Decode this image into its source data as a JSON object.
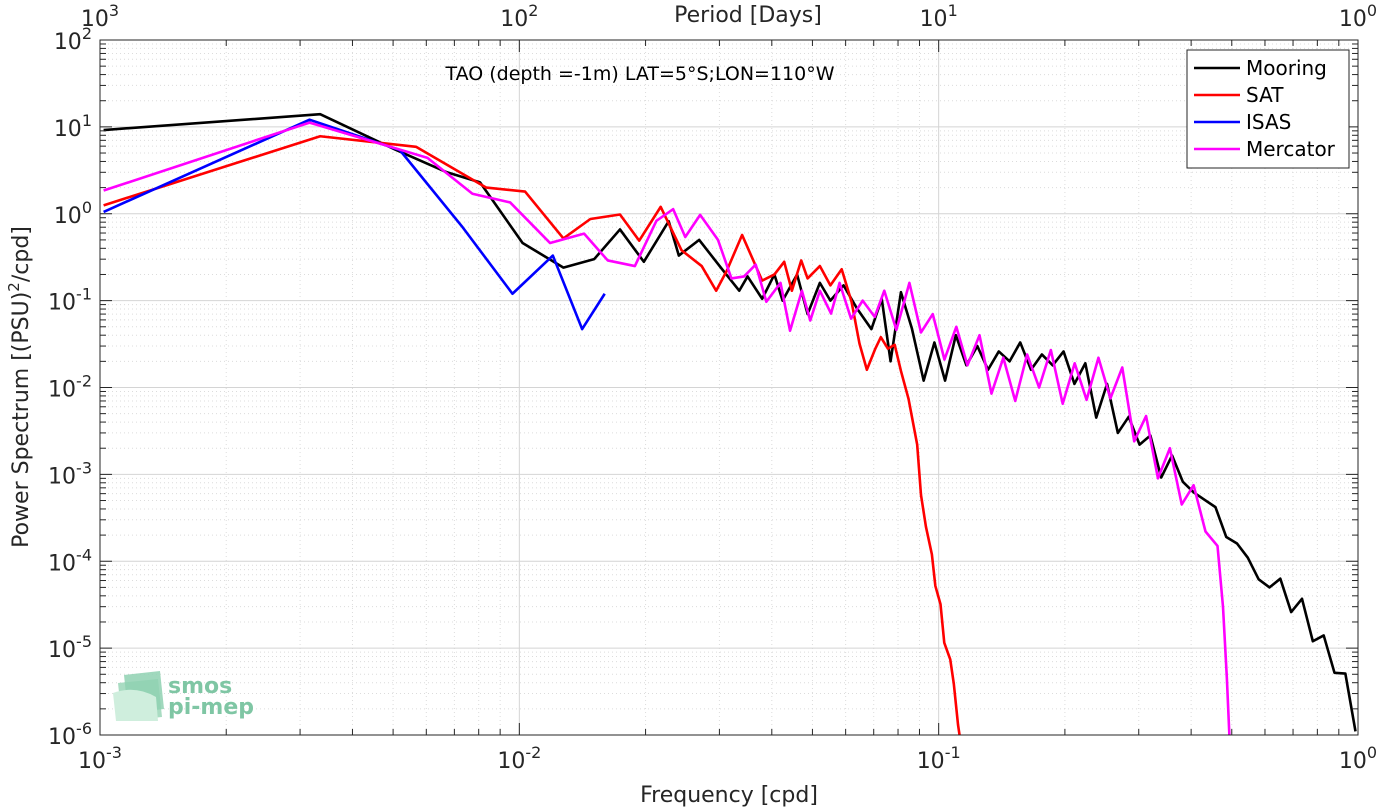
{
  "chart_data": {
    "type": "line",
    "title": "TAO (depth =-1m) LAT=5°S;LON=110°W",
    "xlabel": "Frequency [cpd]",
    "ylabel": "Power Spectrum [(PSU)",
    "ylabel_sup": "2",
    "ylabel_tail": "/cpd]",
    "x2label": "Period [Days]",
    "xscale": "log",
    "yscale": "log",
    "xlim": [
      0.001,
      1
    ],
    "ylim": [
      1e-06,
      100
    ],
    "grid": true,
    "legend_position": "top-right",
    "x_ticks": [
      {
        "value": 0.001,
        "base": "10",
        "exp": "-3"
      },
      {
        "value": 0.01,
        "base": "10",
        "exp": "-2"
      },
      {
        "value": 0.1,
        "base": "10",
        "exp": "-1"
      },
      {
        "value": 1,
        "base": "10",
        "exp": "0"
      }
    ],
    "y_ticks": [
      {
        "value": 1e-06,
        "base": "10",
        "exp": "-6"
      },
      {
        "value": 1e-05,
        "base": "10",
        "exp": "-5"
      },
      {
        "value": 0.0001,
        "base": "10",
        "exp": "-4"
      },
      {
        "value": 0.001,
        "base": "10",
        "exp": "-3"
      },
      {
        "value": 0.01,
        "base": "10",
        "exp": "-2"
      },
      {
        "value": 0.1,
        "base": "10",
        "exp": "-1"
      },
      {
        "value": 1,
        "base": "10",
        "exp": "0"
      },
      {
        "value": 10,
        "base": "10",
        "exp": "1"
      },
      {
        "value": 100,
        "base": "10",
        "exp": "2"
      }
    ],
    "x2_ticks": [
      {
        "period": 1000,
        "base": "10",
        "exp": "3"
      },
      {
        "period": 100,
        "base": "10",
        "exp": "2"
      },
      {
        "period": 10,
        "base": "10",
        "exp": "1"
      },
      {
        "period": 1,
        "base": "10",
        "exp": "0"
      }
    ],
    "series": [
      {
        "name": "Mooring",
        "color": "#000000",
        "points": [
          [
            0.00102,
            9.2
          ],
          [
            0.00335,
            14.0
          ],
          [
            0.00505,
            5.5
          ],
          [
            0.00672,
            3.0
          ],
          [
            0.00806,
            2.3
          ],
          [
            0.01018,
            0.46
          ],
          [
            0.01274,
            0.24
          ],
          [
            0.01508,
            0.3
          ],
          [
            0.01738,
            0.66
          ],
          [
            0.01981,
            0.28
          ],
          [
            0.02271,
            0.82
          ],
          [
            0.02401,
            0.33
          ],
          [
            0.02685,
            0.5
          ],
          [
            0.03023,
            0.24
          ],
          [
            0.03345,
            0.13
          ],
          [
            0.03502,
            0.19
          ],
          [
            0.03794,
            0.105
          ],
          [
            0.04058,
            0.2
          ],
          [
            0.04244,
            0.1
          ],
          [
            0.04596,
            0.2
          ],
          [
            0.04869,
            0.07
          ],
          [
            0.05208,
            0.16
          ],
          [
            0.05518,
            0.1
          ],
          [
            0.05932,
            0.15
          ],
          [
            0.06377,
            0.082
          ],
          [
            0.06912,
            0.047
          ],
          [
            0.07315,
            0.105
          ],
          [
            0.07679,
            0.02
          ],
          [
            0.08129,
            0.125
          ],
          [
            0.08631,
            0.048
          ],
          [
            0.09209,
            0.012
          ],
          [
            0.09769,
            0.033
          ],
          [
            0.10358,
            0.012
          ],
          [
            0.10988,
            0.04
          ],
          [
            0.11645,
            0.018
          ],
          [
            0.12366,
            0.03
          ],
          [
            0.13114,
            0.016
          ],
          [
            0.13912,
            0.026
          ],
          [
            0.14759,
            0.02
          ],
          [
            0.15651,
            0.033
          ],
          [
            0.16605,
            0.016
          ],
          [
            0.17622,
            0.024
          ],
          [
            0.18702,
            0.018
          ],
          [
            0.19853,
            0.026
          ],
          [
            0.21076,
            0.011
          ],
          [
            0.22374,
            0.019
          ],
          [
            0.23756,
            0.0045
          ],
          [
            0.25208,
            0.011
          ],
          [
            0.2675,
            0.003
          ],
          [
            0.28391,
            0.0046
          ],
          [
            0.30133,
            0.0022
          ],
          [
            0.31984,
            0.0028
          ],
          [
            0.33938,
            0.00092
          ],
          [
            0.3603,
            0.00165
          ],
          [
            0.38227,
            0.00082
          ],
          [
            0.40578,
            0.00062
          ],
          [
            0.43065,
            0.00051
          ],
          [
            0.45711,
            0.00042
          ],
          [
            0.48517,
            0.00019
          ],
          [
            0.51465,
            0.00016
          ],
          [
            0.546,
            0.00011
          ],
          [
            0.57955,
            6.2e-05
          ],
          [
            0.61524,
            5e-05
          ],
          [
            0.65276,
            6.3e-05
          ],
          [
            0.69288,
            2.6e-05
          ],
          [
            0.73527,
            3.7e-05
          ],
          [
            0.78032,
            1.2e-05
          ],
          [
            0.82839,
            1.4e-05
          ],
          [
            0.87893,
            5.2e-06
          ],
          [
            0.9329,
            5.1e-06
          ],
          [
            0.9863,
            1.1e-06
          ]
        ]
      },
      {
        "name": "SAT",
        "color": "#ff0000",
        "points": [
          [
            0.00102,
            1.25
          ],
          [
            0.00335,
            7.8
          ],
          [
            0.00567,
            5.9
          ],
          [
            0.00834,
            2.0
          ],
          [
            0.01032,
            1.8
          ],
          [
            0.01274,
            0.52
          ],
          [
            0.01477,
            0.87
          ],
          [
            0.01738,
            0.98
          ],
          [
            0.01931,
            0.49
          ],
          [
            0.02173,
            1.2
          ],
          [
            0.02437,
            0.38
          ],
          [
            0.02722,
            0.25
          ],
          [
            0.02947,
            0.13
          ],
          [
            0.03123,
            0.22
          ],
          [
            0.03398,
            0.57
          ],
          [
            0.03794,
            0.17
          ],
          [
            0.04058,
            0.2
          ],
          [
            0.04282,
            0.28
          ],
          [
            0.04466,
            0.13
          ],
          [
            0.04701,
            0.29
          ],
          [
            0.04869,
            0.18
          ],
          [
            0.05208,
            0.25
          ],
          [
            0.05518,
            0.15
          ],
          [
            0.05871,
            0.23
          ],
          [
            0.06198,
            0.097
          ],
          [
            0.06474,
            0.032
          ],
          [
            0.06742,
            0.016
          ],
          [
            0.07062,
            0.028
          ],
          [
            0.07279,
            0.038
          ],
          [
            0.07569,
            0.028
          ],
          [
            0.07855,
            0.031
          ],
          [
            0.08129,
            0.0155
          ],
          [
            0.08475,
            0.0074
          ],
          [
            0.08887,
            0.0022
          ],
          [
            0.09075,
            0.00058
          ],
          [
            0.09324,
            0.00025
          ],
          [
            0.09634,
            0.00012
          ],
          [
            0.0982,
            5.2e-05
          ],
          [
            0.10102,
            3.2e-05
          ],
          [
            0.10313,
            1.15e-05
          ],
          [
            0.10657,
            7.4e-06
          ],
          [
            0.10866,
            3.9e-06
          ],
          [
            0.11124,
            1.3e-06
          ],
          [
            0.11393,
            6e-07
          ]
        ]
      },
      {
        "name": "ISAS",
        "color": "#0000ff",
        "points": [
          [
            0.00102,
            1.05
          ],
          [
            0.00316,
            12.1
          ],
          [
            0.00519,
            5.4
          ],
          [
            0.00729,
            0.72
          ],
          [
            0.00963,
            0.12
          ],
          [
            0.01202,
            0.33
          ],
          [
            0.01412,
            0.047
          ],
          [
            0.01598,
            0.12
          ]
        ]
      },
      {
        "name": "Mercator",
        "color": "#ff00ff",
        "points": [
          [
            0.00102,
            1.85
          ],
          [
            0.00316,
            11.2
          ],
          [
            0.00604,
            4.4
          ],
          [
            0.00773,
            1.7
          ],
          [
            0.00951,
            1.35
          ],
          [
            0.01184,
            0.46
          ],
          [
            0.01427,
            0.59
          ],
          [
            0.01625,
            0.29
          ],
          [
            0.01886,
            0.25
          ],
          [
            0.02123,
            0.83
          ],
          [
            0.02327,
            1.13
          ],
          [
            0.02487,
            0.54
          ],
          [
            0.02699,
            0.97
          ],
          [
            0.02977,
            0.5
          ],
          [
            0.03205,
            0.18
          ],
          [
            0.03435,
            0.19
          ],
          [
            0.03662,
            0.26
          ],
          [
            0.03882,
            0.097
          ],
          [
            0.04196,
            0.16
          ],
          [
            0.04421,
            0.045
          ],
          [
            0.04719,
            0.13
          ],
          [
            0.04941,
            0.059
          ],
          [
            0.05208,
            0.13
          ],
          [
            0.05538,
            0.071
          ],
          [
            0.05804,
            0.16
          ],
          [
            0.06181,
            0.062
          ],
          [
            0.06589,
            0.1
          ],
          [
            0.07039,
            0.065
          ],
          [
            0.07419,
            0.13
          ],
          [
            0.07927,
            0.046
          ],
          [
            0.08516,
            0.16
          ],
          [
            0.09075,
            0.043
          ],
          [
            0.09681,
            0.07
          ],
          [
            0.10322,
            0.021
          ],
          [
            0.11017,
            0.05
          ],
          [
            0.11713,
            0.018
          ],
          [
            0.12514,
            0.04
          ],
          [
            0.13364,
            0.0085
          ],
          [
            0.14263,
            0.022
          ],
          [
            0.15227,
            0.007
          ],
          [
            0.16255,
            0.024
          ],
          [
            0.1736,
            0.01
          ],
          [
            0.18515,
            0.027
          ],
          [
            0.19761,
            0.0065
          ],
          [
            0.21103,
            0.019
          ],
          [
            0.22528,
            0.0072
          ],
          [
            0.24045,
            0.022
          ],
          [
            0.25676,
            0.0075
          ],
          [
            0.27404,
            0.017
          ],
          [
            0.29262,
            0.0024
          ],
          [
            0.31234,
            0.0047
          ],
          [
            0.33337,
            0.0009
          ],
          [
            0.35597,
            0.002
          ],
          [
            0.37991,
            0.00045
          ],
          [
            0.40549,
            0.00075
          ],
          [
            0.43283,
            0.00022
          ],
          [
            0.46235,
            0.00015
          ],
          [
            0.47648,
            3e-05
          ],
          [
            0.48672,
            4.5e-06
          ],
          [
            0.49575,
            6e-07
          ]
        ]
      }
    ],
    "logo_lines": [
      "smos",
      "pi-mep"
    ]
  }
}
